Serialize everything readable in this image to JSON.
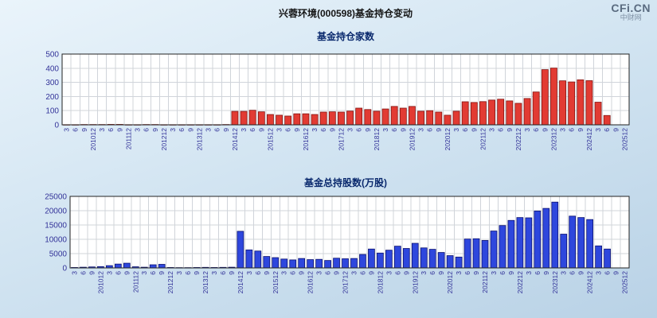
{
  "page": {
    "title": "兴蓉环境(000598)基金持仓变动"
  },
  "logo": {
    "text": "CFi.CN",
    "subtext": "中财网"
  },
  "colors": {
    "background_top": "#eaf4fb",
    "background_bottom": "#b9d2e6",
    "plot_bg": "#ffffff",
    "grid": "#d0d4da",
    "axis_label": "#333399",
    "plot_border": "#222222",
    "red_bar": "#e23b33",
    "red_bar_border": "#801310",
    "blue_bar": "#2e47dd",
    "blue_bar_border": "#0c1270"
  },
  "chart_data": [
    {
      "type": "bar",
      "title": "基金持仓家数",
      "xlabel": "",
      "ylabel": "",
      "ylim": [
        0,
        500
      ],
      "yticks": [
        0,
        100,
        200,
        300,
        400,
        500
      ],
      "grid": true,
      "legend_position": "none",
      "bar_color": "#e23b33",
      "bar_border": "#801310",
      "categories": [
        "3",
        "6",
        "9",
        "201012",
        "3",
        "6",
        "9",
        "201112",
        "3",
        "6",
        "9",
        "201212",
        "3",
        "6",
        "9",
        "201312",
        "3",
        "6",
        "9",
        "201412",
        "3",
        "6",
        "9",
        "201512",
        "3",
        "6",
        "9",
        "201612",
        "3",
        "6",
        "9",
        "201712",
        "3",
        "6",
        "9",
        "201812",
        "3",
        "6",
        "9",
        "201912",
        "3",
        "6",
        "9",
        "202012",
        "3",
        "6",
        "9",
        "202112",
        "3",
        "6",
        "9",
        "202212",
        "3",
        "6",
        "9",
        "202312",
        "3",
        "6",
        "9",
        "202412",
        "3",
        "6",
        "9",
        "202512"
      ],
      "values": [
        1,
        1,
        2,
        2,
        2,
        3,
        3,
        1,
        1,
        2,
        2,
        1,
        1,
        1,
        1,
        1,
        1,
        1,
        2,
        95,
        95,
        103,
        92,
        73,
        68,
        62,
        78,
        78,
        73,
        90,
        92,
        90,
        97,
        118,
        108,
        96,
        112,
        130,
        118,
        130,
        96,
        100,
        90,
        68,
        96,
        163,
        158,
        164,
        175,
        181,
        169,
        152,
        186,
        232,
        390,
        401,
        311,
        303,
        318,
        312,
        160,
        66,
        null,
        null
      ]
    },
    {
      "type": "bar",
      "title": "基金总持股数(万股)",
      "xlabel": "",
      "ylabel": "",
      "ylim": [
        0,
        25000
      ],
      "yticks": [
        0,
        5000,
        10000,
        15000,
        20000,
        25000
      ],
      "grid": true,
      "legend_position": "none",
      "bar_color": "#2e47dd",
      "bar_border": "#0c1270",
      "categories": [
        "3",
        "6",
        "9",
        "201012",
        "3",
        "6",
        "9",
        "201112",
        "3",
        "6",
        "9",
        "201212",
        "3",
        "6",
        "9",
        "201312",
        "3",
        "6",
        "9",
        "201412",
        "3",
        "6",
        "9",
        "201512",
        "3",
        "6",
        "9",
        "201612",
        "3",
        "6",
        "9",
        "201712",
        "3",
        "6",
        "9",
        "201812",
        "3",
        "6",
        "9",
        "201912",
        "3",
        "6",
        "9",
        "202012",
        "3",
        "6",
        "9",
        "202112",
        "3",
        "6",
        "9",
        "202212",
        "3",
        "6",
        "9",
        "202312",
        "3",
        "6",
        "9",
        "202412",
        "3",
        "6",
        "9",
        "202512"
      ],
      "values": [
        150,
        250,
        350,
        450,
        800,
        1350,
        1650,
        400,
        250,
        1100,
        1250,
        150,
        100,
        100,
        150,
        200,
        150,
        200,
        250,
        12800,
        6300,
        5900,
        4000,
        3600,
        3100,
        2800,
        3300,
        2900,
        3000,
        2600,
        3400,
        3200,
        3300,
        4700,
        6600,
        5200,
        6200,
        7600,
        6800,
        8600,
        7000,
        6500,
        5400,
        4300,
        3800,
        10100,
        10200,
        9600,
        12900,
        14800,
        16600,
        17600,
        17500,
        19900,
        20800,
        23000,
        11800,
        18100,
        17600,
        16900,
        7700,
        6600,
        null,
        null
      ]
    }
  ]
}
